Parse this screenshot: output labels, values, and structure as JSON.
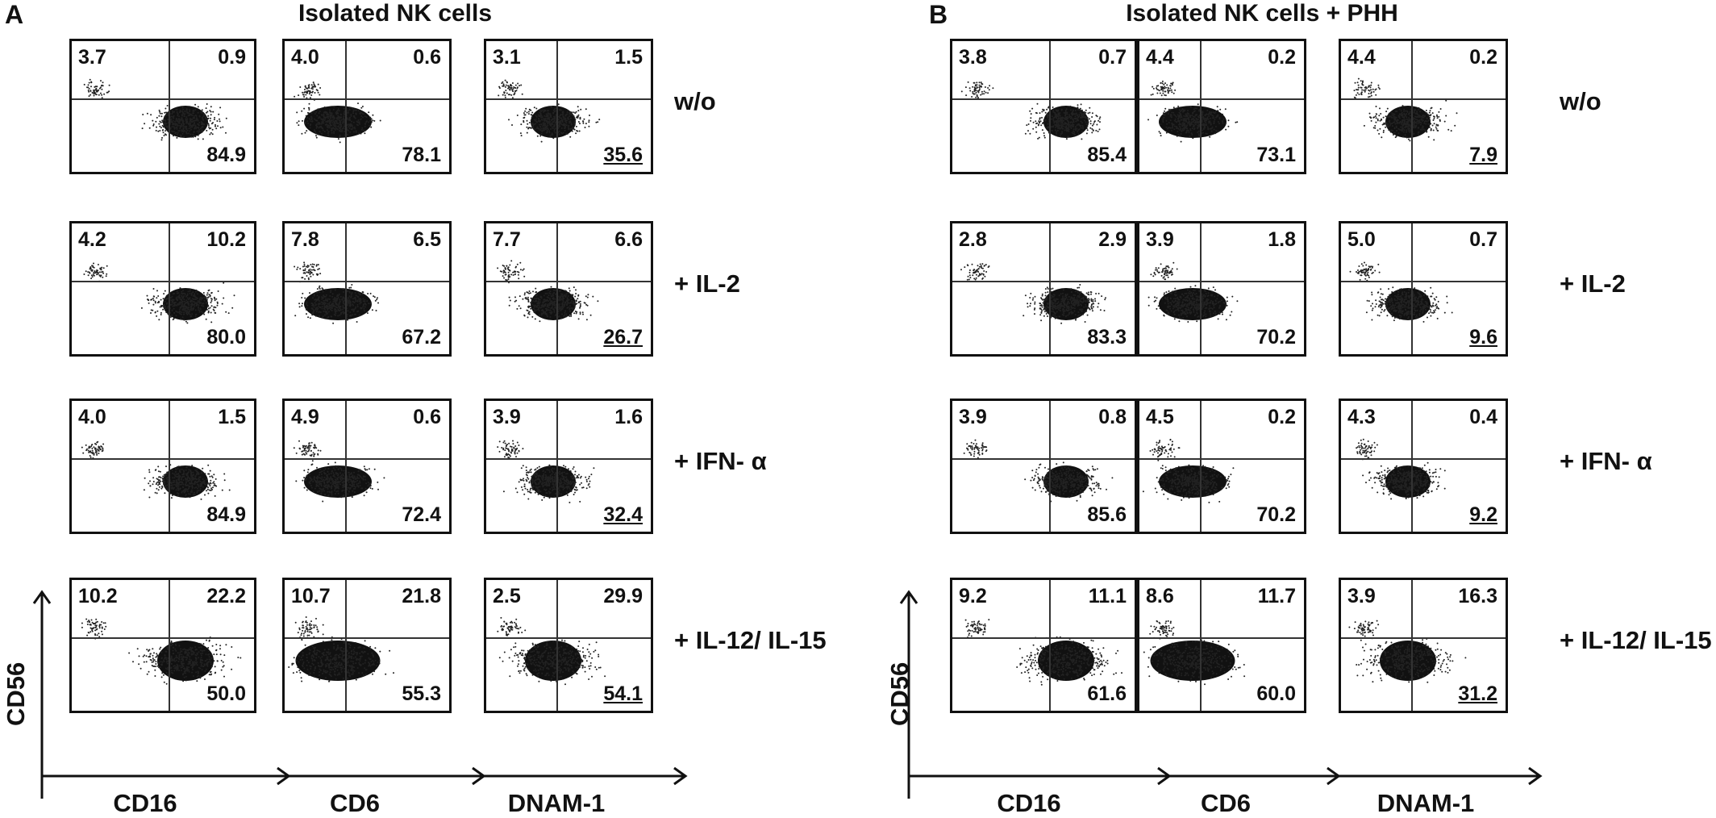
{
  "panels": [
    {
      "letter": "A",
      "title": "Isolated NK cells",
      "y_axis_label": "CD56",
      "x_axis_labels": [
        "CD16",
        "CD6",
        "DNAM-1"
      ],
      "conditions": [
        "w/o",
        "+ IL-2",
        "+ IFN- α",
        "+ IL-12/ IL-15"
      ],
      "plots": [
        [
          {
            "upper_left": "3.7",
            "upper_right": "0.9",
            "lower_right": "84.9"
          },
          {
            "upper_left": "4.0",
            "upper_right": "0.6",
            "lower_right": "78.1"
          },
          {
            "upper_left": "3.1",
            "upper_right": "1.5",
            "lower_right": "35.6"
          }
        ],
        [
          {
            "upper_left": "4.2",
            "upper_right": "10.2",
            "lower_right": "80.0"
          },
          {
            "upper_left": "7.8",
            "upper_right": "6.5",
            "lower_right": "67.2"
          },
          {
            "upper_left": "7.7",
            "upper_right": "6.6",
            "lower_right": "26.7"
          }
        ],
        [
          {
            "upper_left": "4.0",
            "upper_right": "1.5",
            "lower_right": "84.9"
          },
          {
            "upper_left": "4.9",
            "upper_right": "0.6",
            "lower_right": "72.4"
          },
          {
            "upper_left": "3.9",
            "upper_right": "1.6",
            "lower_right": "32.4"
          }
        ],
        [
          {
            "upper_left": "10.2",
            "upper_right": "22.2",
            "lower_right": "50.0"
          },
          {
            "upper_left": "10.7",
            "upper_right": "21.8",
            "lower_right": "55.3"
          },
          {
            "upper_left": "2.5",
            "upper_right": "29.9",
            "lower_right": "54.1"
          }
        ]
      ]
    },
    {
      "letter": "B",
      "title": "Isolated NK cells + PHH",
      "y_axis_label": "CD56",
      "x_axis_labels": [
        "CD16",
        "CD6",
        "DNAM-1"
      ],
      "conditions": [
        "w/o",
        "+ IL-2",
        "+ IFN- α",
        "+ IL-12/ IL-15"
      ],
      "plots": [
        [
          {
            "upper_left": "3.8",
            "upper_right": "0.7",
            "lower_right": "85.4"
          },
          {
            "upper_left": "4.4",
            "upper_right": "0.2",
            "lower_right": "73.1"
          },
          {
            "upper_left": "4.4",
            "upper_right": "0.2",
            "lower_right": "7.9"
          }
        ],
        [
          {
            "upper_left": "2.8",
            "upper_right": "2.9",
            "lower_right": "83.3"
          },
          {
            "upper_left": "3.9",
            "upper_right": "1.8",
            "lower_right": "70.2"
          },
          {
            "upper_left": "5.0",
            "upper_right": "0.7",
            "lower_right": "9.6"
          }
        ],
        [
          {
            "upper_left": "3.9",
            "upper_right": "0.8",
            "lower_right": "85.6"
          },
          {
            "upper_left": "4.5",
            "upper_right": "0.2",
            "lower_right": "70.2"
          },
          {
            "upper_left": "4.3",
            "upper_right": "0.4",
            "lower_right": "9.2"
          }
        ],
        [
          {
            "upper_left": "9.2",
            "upper_right": "11.1",
            "lower_right": "61.6"
          },
          {
            "upper_left": "8.6",
            "upper_right": "11.7",
            "lower_right": "60.0"
          },
          {
            "upper_left": "3.9",
            "upper_right": "16.3",
            "lower_right": "31.2"
          }
        ]
      ]
    }
  ]
}
